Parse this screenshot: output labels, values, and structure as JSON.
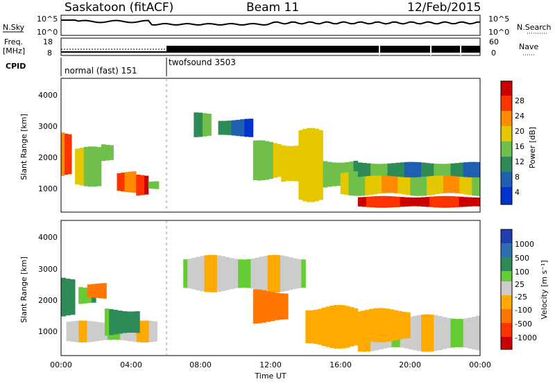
{
  "header": {
    "station": "Saskatoon (fitACF)",
    "beam": "Beam 11",
    "date": "12/Feb/2015"
  },
  "noise_panel": {
    "left_label": "N.Sky",
    "right_label": "N.Search",
    "left_ticks": [
      "10^5",
      "10^0"
    ],
    "right_ticks": [
      "10^5",
      "10^0"
    ]
  },
  "freq_panel": {
    "left_label_line1": "Freq.",
    "left_label_line2": "[MHz]",
    "right_label": "Nave",
    "left_ticks": [
      "18",
      "8"
    ],
    "right_ticks": [
      "60",
      "0"
    ]
  },
  "cpid": {
    "label": "CPID",
    "modes": [
      {
        "name": "normal (fast) 151",
        "start_hour": 0
      },
      {
        "name": "twofsound 3503",
        "start_hour": 6
      }
    ]
  },
  "time_axis": {
    "label": "Time UT",
    "ticks": [
      "00:00",
      "04:00",
      "08:00",
      "12:00",
      "16:00",
      "20:00",
      "00:00"
    ]
  },
  "power_panel": {
    "ylabel": "Slant Range [km]",
    "yticks": [
      "1000",
      "2000",
      "3000",
      "4000"
    ],
    "colorbar_label": "Power [dB]",
    "colorbar_ticks": [
      "4",
      "8",
      "12",
      "16",
      "20",
      "24",
      "28"
    ]
  },
  "velocity_panel": {
    "ylabel": "Slant Range [km]",
    "yticks": [
      "1000",
      "2000",
      "3000",
      "4000"
    ],
    "colorbar_label": "Velocity [m s⁻¹]",
    "colorbar_ticks": [
      "1000",
      "500",
      "100",
      "25",
      "-25",
      "-100",
      "-500",
      "-1000"
    ]
  },
  "colors": {
    "power_scale": [
      "#0033cc",
      "#1f5fb0",
      "#2e8b57",
      "#6fbf4a",
      "#e6c800",
      "#ff8c00",
      "#ff3300",
      "#cc0000"
    ],
    "velocity_scale": [
      "#1f3fb0",
      "#2e6fb0",
      "#2e8b57",
      "#66cc33",
      "#cccccc",
      "#ffaa00",
      "#ff7700",
      "#ff3300",
      "#cc0000"
    ]
  },
  "chart_data": [
    {
      "type": "heatmap",
      "title": "Power",
      "xlabel": "Time UT",
      "ylabel": "Slant Range [km]",
      "xlim": [
        0,
        24
      ],
      "ylim": [
        180,
        4500
      ],
      "colorbar": {
        "label": "Power [dB]",
        "range": [
          0,
          30
        ]
      },
      "regions": [
        {
          "t0": 0.0,
          "t1": 0.6,
          "r0": 1200,
          "r1": 2900,
          "value": 22
        },
        {
          "t0": 0.8,
          "t1": 2.3,
          "r0": 1000,
          "r1": 2300,
          "value": 18
        },
        {
          "t0": 2.3,
          "t1": 3.0,
          "r0": 1800,
          "r1": 2400,
          "value": 14
        },
        {
          "t0": 3.2,
          "t1": 4.3,
          "r0": 800,
          "r1": 1500,
          "value": 24
        },
        {
          "t0": 4.3,
          "t1": 5.0,
          "r0": 700,
          "r1": 1400,
          "value": 28
        },
        {
          "t0": 5.0,
          "t1": 5.6,
          "r0": 900,
          "r1": 1200,
          "value": 12
        },
        {
          "t0": 7.6,
          "t1": 8.6,
          "r0": 2600,
          "r1": 3400,
          "value": 14
        },
        {
          "t0": 9.0,
          "t1": 11.0,
          "r0": 2600,
          "r1": 3200,
          "value": 6
        },
        {
          "t0": 11.0,
          "t1": 12.6,
          "r0": 1200,
          "r1": 2500,
          "value": 16
        },
        {
          "t0": 12.6,
          "t1": 13.6,
          "r0": 1000,
          "r1": 2500,
          "value": 14
        },
        {
          "t0": 13.6,
          "t1": 15.0,
          "r0": 500,
          "r1": 2900,
          "value": 20
        },
        {
          "t0": 15.0,
          "t1": 17.0,
          "r0": 900,
          "r1": 1900,
          "value": 12
        },
        {
          "t0": 16.0,
          "t1": 24.0,
          "r0": 700,
          "r1": 1500,
          "value": 18
        },
        {
          "t0": 17.0,
          "t1": 24.0,
          "r0": 1300,
          "r1": 1800,
          "value": 10
        },
        {
          "t0": 17.0,
          "t1": 24.0,
          "r0": 320,
          "r1": 700,
          "value": 28
        }
      ]
    },
    {
      "type": "heatmap",
      "title": "Velocity",
      "xlabel": "Time UT",
      "ylabel": "Slant Range [km]",
      "xlim": [
        0,
        24
      ],
      "ylim": [
        180,
        4500
      ],
      "colorbar": {
        "label": "Velocity [m s⁻¹]",
        "range": [
          -1000,
          1000
        ]
      },
      "regions": [
        {
          "t0": 0.0,
          "t1": 0.8,
          "r0": 1300,
          "r1": 2800,
          "value": 300
        },
        {
          "t0": 0.3,
          "t1": 5.5,
          "r0": 600,
          "r1": 1300,
          "value": 0
        },
        {
          "t0": 1.0,
          "t1": 2.0,
          "r0": 1800,
          "r1": 2400,
          "value": 80
        },
        {
          "t0": 1.5,
          "t1": 2.6,
          "r0": 2000,
          "r1": 2500,
          "value": -300
        },
        {
          "t0": 2.5,
          "t1": 4.5,
          "r0": 800,
          "r1": 1700,
          "value": 120
        },
        {
          "t0": 7.0,
          "t1": 14.0,
          "r0": 2200,
          "r1": 3400,
          "value": 0
        },
        {
          "t0": 11.0,
          "t1": 13.0,
          "r0": 1200,
          "r1": 2300,
          "value": -250
        },
        {
          "t0": 14.0,
          "t1": 17.0,
          "r0": 400,
          "r1": 1800,
          "value": -60
        },
        {
          "t0": 17.0,
          "t1": 24.0,
          "r0": 300,
          "r1": 1500,
          "value": 0
        },
        {
          "t0": 16.0,
          "t1": 20.0,
          "r0": 600,
          "r1": 1700,
          "value": -70
        }
      ]
    }
  ]
}
